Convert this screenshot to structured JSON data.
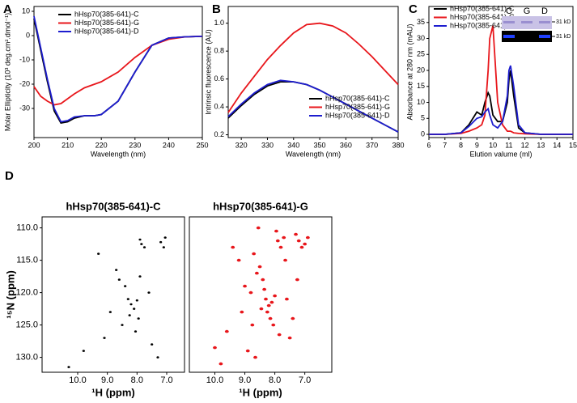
{
  "chart_data": [
    {
      "type": "line",
      "panel_label": "A",
      "xlabel": "Wavelength (nm)",
      "ylabel": "Molar Ellipticity (10³ deg.cm².dmol⁻¹)",
      "x": [
        200,
        202,
        204,
        206,
        208,
        210,
        212,
        215,
        218,
        220,
        225,
        230,
        235,
        240,
        245,
        250
      ],
      "series": [
        {
          "name": "hHsp70(385-641)-C",
          "color": "#000000",
          "values": [
            7,
            -6,
            -19,
            -31,
            -36,
            -35.5,
            -34,
            -33,
            -33,
            -32.5,
            -27,
            -15,
            -4,
            -1,
            -0.5,
            -0.3
          ]
        },
        {
          "name": "hHsp70(385-641)-G",
          "color": "#e8161b",
          "values": [
            -21,
            -25,
            -27,
            -28.5,
            -28,
            -26,
            -24,
            -21.5,
            -20,
            -19,
            -15,
            -9,
            -4,
            -1.5,
            -0.5,
            -0.3
          ]
        },
        {
          "name": "hHsp70(385-641)-D",
          "color": "#1d1dcf",
          "values": [
            8,
            -5,
            -18,
            -30,
            -35.5,
            -35,
            -33.5,
            -33,
            -33,
            -32.5,
            -27,
            -15,
            -4,
            -1,
            -0.5,
            -0.3
          ]
        }
      ],
      "xlim": [
        200,
        250
      ],
      "xticks": [
        200,
        210,
        220,
        230,
        240,
        250
      ],
      "ylim": [
        -42,
        12
      ],
      "yticks": [
        -30,
        -20,
        -10,
        0,
        10
      ],
      "legend": "upper right"
    },
    {
      "type": "line",
      "panel_label": "B",
      "xlabel": "Wavelength (nm)",
      "ylabel": "Intrinsic fluorescence (AU)",
      "x": [
        315,
        320,
        325,
        330,
        335,
        340,
        345,
        350,
        355,
        360,
        365,
        370,
        375,
        380
      ],
      "series": [
        {
          "name": "hHsp70(385-641)-C",
          "color": "#000000",
          "values": [
            0.32,
            0.41,
            0.49,
            0.55,
            0.58,
            0.58,
            0.56,
            0.52,
            0.47,
            0.42,
            0.37,
            0.32,
            0.27,
            0.22
          ]
        },
        {
          "name": "hHsp70(385-641)-G",
          "color": "#e8161b",
          "values": [
            0.36,
            0.5,
            0.62,
            0.74,
            0.84,
            0.93,
            0.99,
            1.0,
            0.98,
            0.93,
            0.85,
            0.76,
            0.66,
            0.56
          ]
        },
        {
          "name": "hHsp70(385-641)-D",
          "color": "#1d1dcf",
          "values": [
            0.33,
            0.42,
            0.5,
            0.56,
            0.59,
            0.58,
            0.56,
            0.52,
            0.47,
            0.42,
            0.37,
            0.32,
            0.27,
            0.22
          ]
        }
      ],
      "xlim": [
        315,
        380
      ],
      "xticks": [
        320,
        330,
        340,
        350,
        360,
        370,
        380
      ],
      "ylim": [
        0.18,
        1.12
      ],
      "yticks": [
        0.2,
        0.4,
        0.6,
        0.8,
        {
          "value": 1,
          "label": "1.0"
        }
      ],
      "legend": "lower right"
    },
    {
      "type": "line",
      "panel_label": "C",
      "xlabel": "Elution valume (ml)",
      "ylabel": "Absorbance at 280 nm (mAU)",
      "x": [
        6,
        7,
        8,
        8.5,
        9,
        9.3,
        9.5,
        9.7,
        9.8,
        10,
        10.3,
        10.6,
        10.9,
        11,
        11.1,
        11.3,
        11.6,
        12,
        13,
        15
      ],
      "series": [
        {
          "name": "hHsp70(385-641)-C",
          "color": "#000000",
          "values": [
            0,
            0,
            0.5,
            3,
            7,
            6,
            10,
            13,
            12,
            6,
            4,
            4,
            10,
            17,
            20,
            12,
            2,
            0.5,
            0,
            0
          ]
        },
        {
          "name": "hHsp70(385-641)-G",
          "color": "#e8161b",
          "values": [
            0,
            0,
            0.3,
            1,
            2,
            3,
            6,
            20,
            30,
            34,
            10,
            3,
            1,
            1,
            1,
            0.5,
            0.3,
            0.2,
            0,
            0
          ]
        },
        {
          "name": "hHsp70(385-641)-D",
          "color": "#1d1dcf",
          "values": [
            0,
            0,
            0.5,
            2.5,
            5,
            5.5,
            7,
            8,
            6,
            3,
            2,
            4,
            12,
            20,
            21.5,
            15,
            3,
            0.5,
            0,
            0
          ]
        }
      ],
      "xlim": [
        6,
        15
      ],
      "xticks": [
        6,
        7,
        8,
        9,
        10,
        11,
        12,
        13,
        14,
        15
      ],
      "ylim": [
        -1,
        40
      ],
      "yticks": [
        0,
        5,
        10,
        15,
        20,
        25,
        30,
        35
      ],
      "legend": "upper left",
      "inset_lanes": [
        "C",
        "G",
        "D"
      ],
      "inset_markers": [
        "31 kD",
        "31 kD"
      ]
    },
    {
      "type": "scatter",
      "panel_label": "D",
      "title": "hHsp70(385-641)-C",
      "xlabel": "¹H (ppm)",
      "ylabel": "¹⁵N (ppm)",
      "color": "#000000",
      "reversed": true,
      "x": [
        7.85,
        7.75,
        7.9,
        7.2,
        7.1,
        7.05,
        8.3,
        8.2,
        8.1,
        8.0,
        8.25,
        8.4,
        7.95,
        8.6,
        8.5,
        8.7,
        9.1,
        9.3,
        7.6,
        7.5,
        8.9,
        10.3,
        9.8,
        8.05,
        7.9,
        7.3
      ],
      "values": [
        112.5,
        113,
        111.8,
        112.2,
        113,
        111.5,
        121,
        121.8,
        122.5,
        121.2,
        123.5,
        119,
        124,
        118,
        125,
        116.5,
        127,
        114,
        120,
        128,
        123,
        131.5,
        129,
        126,
        117.5,
        130
      ],
      "xlim": [
        11.2,
        6.4
      ],
      "xticks": [
        {
          "value": 10,
          "label": "10.0"
        },
        {
          "value": 9,
          "label": "9.0"
        },
        {
          "value": 8,
          "label": "8.0"
        },
        {
          "value": 7,
          "label": "7.0"
        }
      ],
      "ylim": [
        108.3,
        132.3
      ],
      "yticks": [
        {
          "value": 110,
          "label": "110.0"
        },
        {
          "value": 115,
          "label": "115.0"
        },
        {
          "value": 120,
          "label": "120.0"
        },
        {
          "value": 125,
          "label": "125.0"
        },
        {
          "value": 130,
          "label": "130.0"
        }
      ]
    },
    {
      "type": "scatter",
      "title": "hHsp70(385-641)-G",
      "xlabel": "¹H (ppm)",
      "color": "#e8161b",
      "reversed": true,
      "x": [
        7.9,
        7.8,
        7.7,
        7.95,
        7.2,
        7.1,
        7.0,
        7.3,
        8.3,
        8.2,
        8.1,
        8.0,
        8.25,
        8.15,
        8.35,
        8.05,
        8.4,
        8.5,
        8.6,
        8.7,
        8.8,
        9.0,
        9.2,
        9.4,
        9.6,
        7.6,
        7.5,
        7.4,
        8.45,
        7.85,
        8.55,
        9.1,
        10.0,
        9.8,
        8.9,
        7.65,
        7.25,
        8.75,
        6.9,
        8.65
      ],
      "values": [
        112,
        113,
        111.5,
        110.5,
        112,
        113,
        112.5,
        111,
        121,
        122,
        121.5,
        120.5,
        123,
        124,
        119.5,
        125,
        118,
        116,
        117,
        114,
        120,
        119,
        115,
        113,
        126,
        121,
        127,
        124,
        122.5,
        126.5,
        110,
        123,
        128.5,
        131,
        129,
        115,
        118,
        125,
        111.5,
        130
      ],
      "xlim": [
        10.85,
        6.1
      ],
      "xticks": [
        {
          "value": 10,
          "label": "10.0"
        },
        {
          "value": 9,
          "label": "9.0"
        },
        {
          "value": 8,
          "label": "8.0"
        },
        {
          "value": 7,
          "label": "7.0"
        }
      ],
      "ylim": [
        108.3,
        132.3
      ]
    }
  ]
}
